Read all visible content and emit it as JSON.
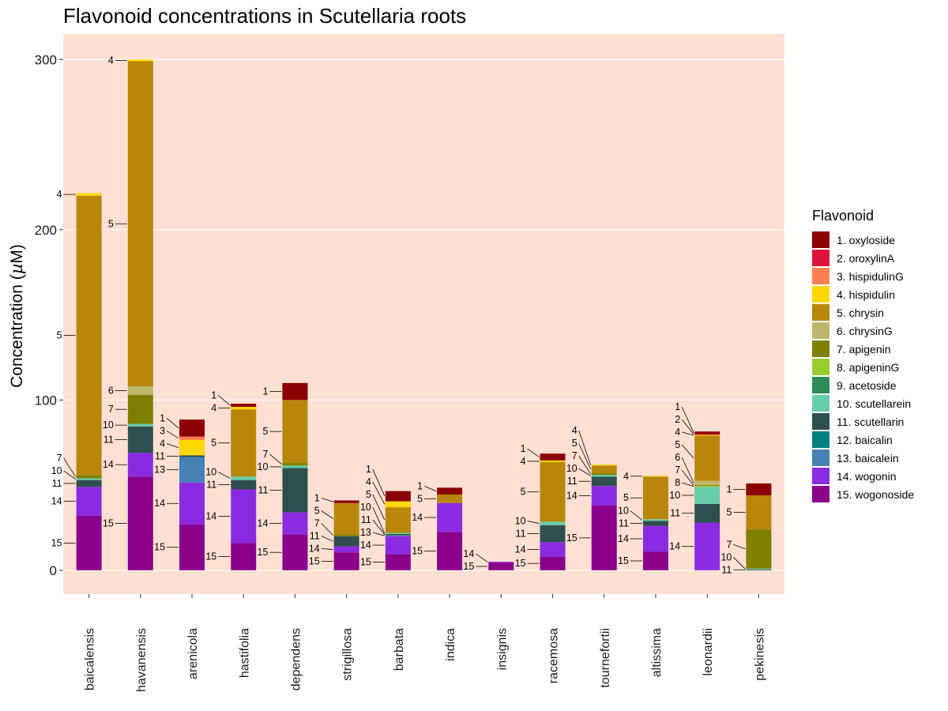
{
  "chart_data": {
    "type": "bar",
    "stacked": true,
    "title": "Flavonoid concentrations in Scutellaria roots",
    "xlabel": "",
    "ylabel": "Concentration (",
    "ylabel_unit_symbol": "µ",
    "ylabel_unit": "M)",
    "ylim": [
      -14,
      315
    ],
    "yticks": [
      0,
      100,
      200,
      300
    ],
    "grid": true,
    "panel_color": "#FFE0D2",
    "legend": {
      "title": "Flavonoid",
      "position": "right",
      "entries": [
        {
          "label": "1. oxyloside",
          "color": "#8B0000"
        },
        {
          "label": "2. oroxylinA",
          "color": "#DC143C"
        },
        {
          "label": "3. hispidulinG",
          "color": "#FF7F50"
        },
        {
          "label": "4. hispidulin",
          "color": "#FFD700"
        },
        {
          "label": "5. chrysin",
          "color": "#B8860B"
        },
        {
          "label": "6. chrysinG",
          "color": "#BDB76B"
        },
        {
          "label": "7. apigenin",
          "color": "#808000"
        },
        {
          "label": "8. apigeninG",
          "color": "#9ACD32"
        },
        {
          "label": "9. acetoside",
          "color": "#2E8B57"
        },
        {
          "label": "10. scutellarein",
          "color": "#66CDAA"
        },
        {
          "label": "11. scutellarin",
          "color": "#2F4F4F"
        },
        {
          "label": "12. baicalin",
          "color": "#008080"
        },
        {
          "label": "13. baicalein",
          "color": "#4682B4"
        },
        {
          "label": "14. wogonin",
          "color": "#8A2BE2"
        },
        {
          "label": "15. wogonoside",
          "color": "#8B008B"
        }
      ]
    },
    "categories": [
      "baicalensis",
      "havanensis",
      "arenicola",
      "hastifolia",
      "dependens",
      "strigillosa",
      "barbata",
      "indica",
      "insignis",
      "racemosa",
      "tournefortii",
      "altissima",
      "leonardii",
      "pekinesis"
    ],
    "stacks": [
      {
        "category": "baicalensis",
        "segments": [
          {
            "id": 15,
            "value": 32,
            "label": "15"
          },
          {
            "id": 14,
            "value": 17,
            "label": "14"
          },
          {
            "id": 11,
            "value": 4,
            "label": "11"
          },
          {
            "id": 10,
            "value": 1,
            "label": "10"
          },
          {
            "id": 7,
            "value": 2,
            "label": "7"
          },
          {
            "id": 5,
            "value": 164,
            "label": "5"
          },
          {
            "id": 4,
            "value": 1.5,
            "label": "4"
          }
        ]
      },
      {
        "category": "havanensis",
        "segments": [
          {
            "id": 15,
            "value": 55,
            "label": "15"
          },
          {
            "id": 14,
            "value": 14,
            "label": "14"
          },
          {
            "id": 11,
            "value": 15.5,
            "label": "11"
          },
          {
            "id": 10,
            "value": 1.5,
            "label": "10"
          },
          {
            "id": 7,
            "value": 17,
            "label": "7"
          },
          {
            "id": 6,
            "value": 5,
            "label": "6"
          },
          {
            "id": 5,
            "value": 191,
            "label": "5"
          },
          {
            "id": 4,
            "value": 1,
            "label": "4"
          }
        ]
      },
      {
        "category": "arenicola",
        "segments": [
          {
            "id": 15,
            "value": 27,
            "label": "15"
          },
          {
            "id": 14,
            "value": 24.5,
            "label": "14"
          },
          {
            "id": 13,
            "value": 15,
            "label": "13"
          },
          {
            "id": 11,
            "value": 1,
            "label": "11"
          },
          {
            "id": 4,
            "value": 9,
            "label": "4"
          },
          {
            "id": 3,
            "value": 2,
            "label": "3"
          },
          {
            "id": 1,
            "value": 10,
            "label": "1"
          }
        ]
      },
      {
        "category": "hastifolia",
        "segments": [
          {
            "id": 15,
            "value": 16,
            "label": "15"
          },
          {
            "id": 14,
            "value": 31.5,
            "label": "14"
          },
          {
            "id": 11,
            "value": 5.5,
            "label": "11"
          },
          {
            "id": 10,
            "value": 2,
            "label": "10"
          },
          {
            "id": 5,
            "value": 39.5,
            "label": "5"
          },
          {
            "id": 4,
            "value": 1.5,
            "label": "4"
          },
          {
            "id": 1,
            "value": 1.8,
            "label": "1"
          }
        ]
      },
      {
        "category": "dependens",
        "segments": [
          {
            "id": 15,
            "value": 21,
            "label": "15"
          },
          {
            "id": 14,
            "value": 13,
            "label": "14"
          },
          {
            "id": 11,
            "value": 26,
            "label": "11"
          },
          {
            "id": 10,
            "value": 1.5,
            "label": "10"
          },
          {
            "id": 7,
            "value": 1.5,
            "label": "7"
          },
          {
            "id": 5,
            "value": 37,
            "label": "5"
          },
          {
            "id": 1,
            "value": 10,
            "label": "1"
          }
        ]
      },
      {
        "category": "strigillosa",
        "segments": [
          {
            "id": 15,
            "value": 10.5,
            "label": "15"
          },
          {
            "id": 14,
            "value": 3.5,
            "label": "14"
          },
          {
            "id": 11,
            "value": 6,
            "label": "11"
          },
          {
            "id": 7,
            "value": 1,
            "label": "7"
          },
          {
            "id": 5,
            "value": 18.5,
            "label": "5"
          },
          {
            "id": 1,
            "value": 1.5,
            "label": "1"
          }
        ]
      },
      {
        "category": "barbata",
        "segments": [
          {
            "id": 15,
            "value": 9.5,
            "label": "15"
          },
          {
            "id": 14,
            "value": 10.5,
            "label": "14"
          },
          {
            "id": 13,
            "value": 0.5,
            "label": "13"
          },
          {
            "id": 11,
            "value": 0.8,
            "label": "11"
          },
          {
            "id": 10,
            "value": 0.7,
            "label": "10"
          },
          {
            "id": 5,
            "value": 15,
            "label": "5"
          },
          {
            "id": 4,
            "value": 3.5,
            "label": "4"
          },
          {
            "id": 1,
            "value": 6,
            "label": "1"
          }
        ]
      },
      {
        "category": "indica",
        "segments": [
          {
            "id": 15,
            "value": 22.5,
            "label": "15"
          },
          {
            "id": 14,
            "value": 17,
            "label": "14"
          },
          {
            "id": 5,
            "value": 5,
            "label": "5"
          },
          {
            "id": 1,
            "value": 4,
            "label": "1"
          }
        ]
      },
      {
        "category": "insignis",
        "segments": [
          {
            "id": 15,
            "value": 4.5,
            "label": "15"
          },
          {
            "id": 14,
            "value": 0.5,
            "label": "14"
          }
        ]
      },
      {
        "category": "racemosa",
        "segments": [
          {
            "id": 15,
            "value": 8,
            "label": "15"
          },
          {
            "id": 14,
            "value": 8.5,
            "label": "14"
          },
          {
            "id": 11,
            "value": 10,
            "label": "11"
          },
          {
            "id": 10,
            "value": 2,
            "label": "10"
          },
          {
            "id": 5,
            "value": 35,
            "label": "5"
          },
          {
            "id": 4,
            "value": 1,
            "label": "4"
          },
          {
            "id": 1,
            "value": 4,
            "label": "1"
          }
        ]
      },
      {
        "category": "tournefortii",
        "segments": [
          {
            "id": 15,
            "value": 38,
            "label": "15"
          },
          {
            "id": 14,
            "value": 11.5,
            "label": "14"
          },
          {
            "id": 11,
            "value": 5.5,
            "label": "11"
          },
          {
            "id": 10,
            "value": 1,
            "label": "10"
          },
          {
            "id": 7,
            "value": 1,
            "label": "7"
          },
          {
            "id": 5,
            "value": 4.5,
            "label": "5"
          },
          {
            "id": 4,
            "value": 0.5,
            "label": "4"
          }
        ]
      },
      {
        "category": "altissima",
        "segments": [
          {
            "id": 15,
            "value": 11,
            "label": "15"
          },
          {
            "id": 14,
            "value": 15,
            "label": "14"
          },
          {
            "id": 11,
            "value": 3,
            "label": "11"
          },
          {
            "id": 10,
            "value": 1,
            "label": "10"
          },
          {
            "id": 5,
            "value": 25,
            "label": "5"
          },
          {
            "id": 4,
            "value": 0.5,
            "label": "4"
          }
        ]
      },
      {
        "category": "leonardii",
        "segments": [
          {
            "id": 14,
            "value": 28,
            "label": "14"
          },
          {
            "id": 11,
            "value": 11,
            "label": "11"
          },
          {
            "id": 10,
            "value": 10,
            "label": "10"
          },
          {
            "id": 8,
            "value": 0.5,
            "label": "8"
          },
          {
            "id": 7,
            "value": 0.5,
            "label": "7"
          },
          {
            "id": 6,
            "value": 2.5,
            "label": "6"
          },
          {
            "id": 5,
            "value": 26.5,
            "label": "5"
          },
          {
            "id": 4,
            "value": 0.5,
            "label": "4"
          },
          {
            "id": 2,
            "value": 0.5,
            "label": "2"
          },
          {
            "id": 1,
            "value": 1.5,
            "label": "1"
          }
        ]
      },
      {
        "category": "pekinesis",
        "segments": [
          {
            "id": 11,
            "value": 0.5,
            "label": "11"
          },
          {
            "id": 10,
            "value": 0.5,
            "label": "10"
          },
          {
            "id": 7,
            "value": 23,
            "label": "7"
          },
          {
            "id": 5,
            "value": 20,
            "label": "5"
          },
          {
            "id": 1,
            "value": 7,
            "label": "1"
          }
        ]
      }
    ]
  }
}
